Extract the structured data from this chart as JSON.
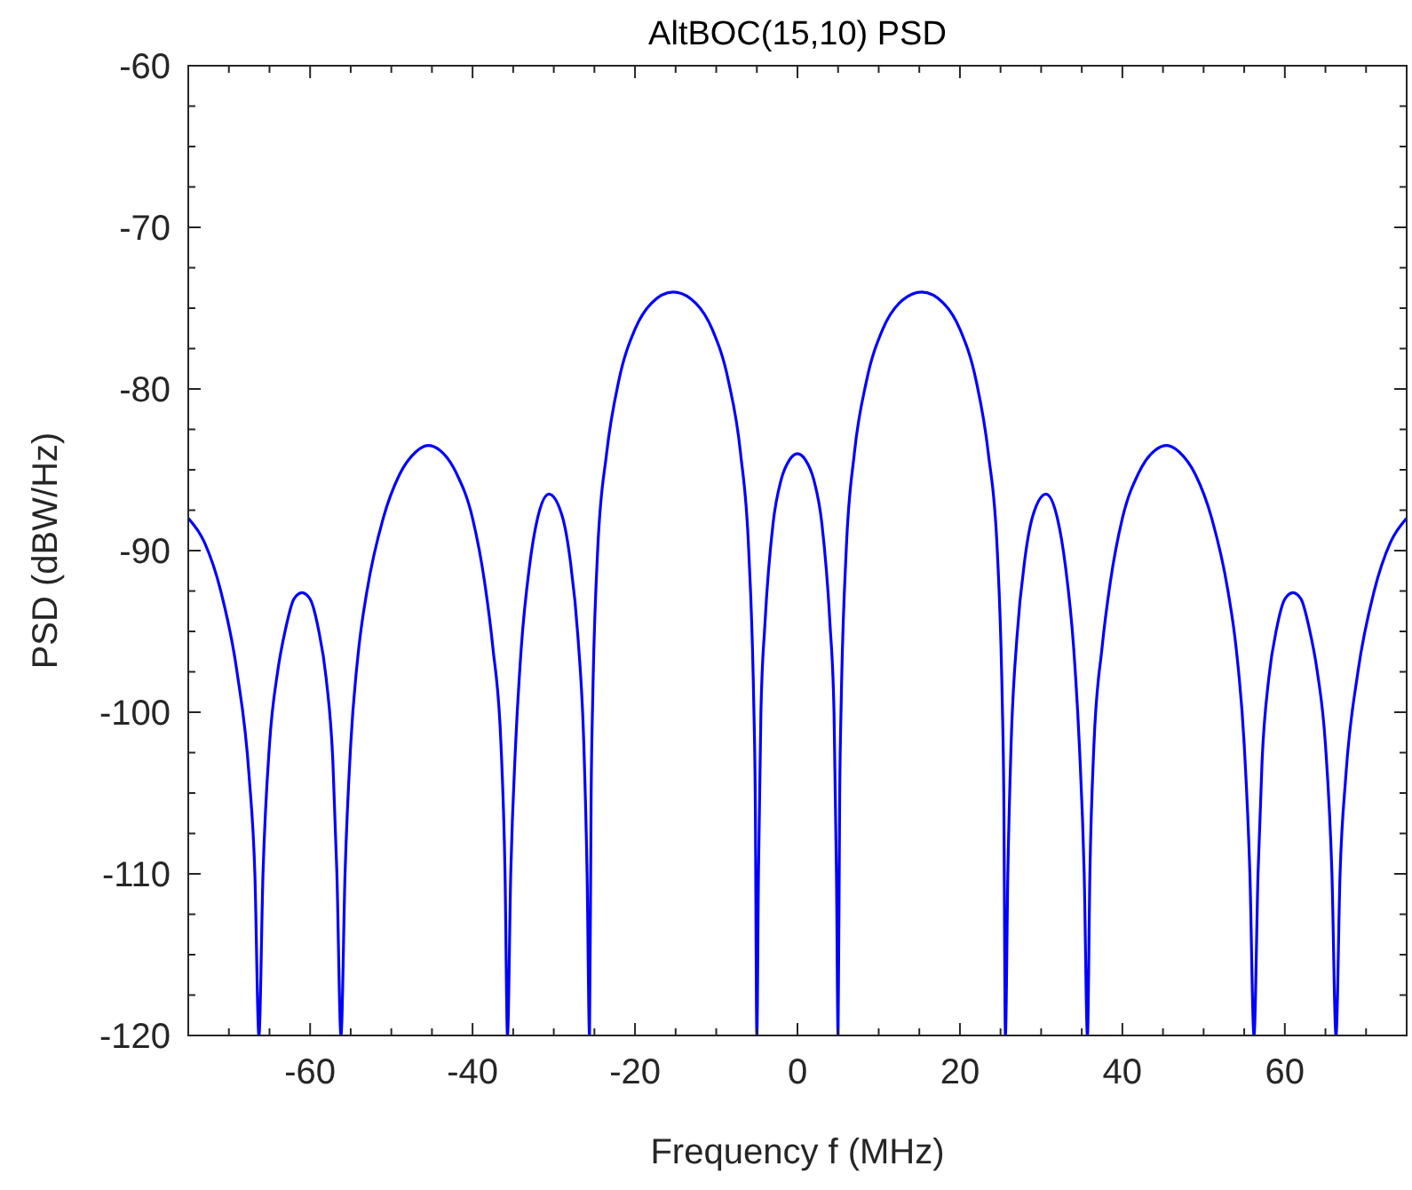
{
  "chart_data": {
    "type": "line",
    "title": "AltBOC(15,10) PSD",
    "xlabel": "Frequency f (MHz)",
    "ylabel": "PSD (dBW/Hz)",
    "x": [
      -75,
      -73,
      -71,
      -69,
      -67.5,
      -66.8,
      -66.3,
      -65.8,
      -65,
      -64,
      -63,
      -62,
      -61,
      -60,
      -59,
      -58,
      -57.2,
      -56.7,
      -56.2,
      -55.7,
      -55,
      -54,
      -53,
      -51,
      -49,
      -47,
      -45.5,
      -44,
      -42,
      -40,
      -38.5,
      -37.5,
      -36.5,
      -36,
      -35.7,
      -35.3,
      -34.7,
      -34,
      -33,
      -32,
      -30.6,
      -29,
      -28,
      -27,
      -26.3,
      -25.9,
      -25.6,
      -25.4,
      -25.2,
      -24.6,
      -23.5,
      -22,
      -20,
      -18,
      -15.3,
      -12.5,
      -10.5,
      -8.5,
      -7,
      -6,
      -5.4,
      -5.2,
      -5,
      -4.8,
      -4.5,
      -4,
      -3,
      -2,
      -1,
      0,
      1,
      2,
      3,
      4,
      4.5,
      4.8,
      5,
      5.2,
      5.4,
      6,
      7,
      8.5,
      10.5,
      12.5,
      15.3,
      18,
      20,
      22,
      23.5,
      24.6,
      25.2,
      25.4,
      25.6,
      25.9,
      26.3,
      27,
      28,
      29,
      30.6,
      32,
      33,
      34,
      34.7,
      35.3,
      35.7,
      36,
      36.5,
      37.5,
      38.5,
      40,
      42,
      44,
      45.5,
      47,
      49,
      51,
      53,
      54,
      55,
      55.7,
      56.2,
      56.7,
      57.2,
      58,
      59,
      60,
      61,
      62,
      63,
      64,
      65,
      65.8,
      66.3,
      66.8,
      67.5,
      69,
      71,
      73,
      75
    ],
    "series": [
      {
        "color": "#0000ff",
        "values": [
          -88,
          -89.5,
          -92.5,
          -97.5,
          -104,
          -110,
          -120,
          -110,
          -102,
          -97.5,
          -94.8,
          -93,
          -92.6,
          -93,
          -94.8,
          -98,
          -103,
          -110,
          -120,
          -110,
          -102,
          -96,
          -92.5,
          -88,
          -85.3,
          -83.9,
          -83.5,
          -83.8,
          -85.2,
          -88,
          -92,
          -96,
          -102,
          -110,
          -120,
          -110,
          -102,
          -96,
          -91,
          -88,
          -86.5,
          -87.8,
          -90.5,
          -95.5,
          -102,
          -110,
          -120,
          -105,
          -99,
          -90,
          -84,
          -79.5,
          -76.3,
          -74.7,
          -74,
          -74.7,
          -76.3,
          -79.5,
          -84,
          -90,
          -99,
          -105,
          -120,
          -110,
          -100,
          -94.5,
          -88.3,
          -85.6,
          -84.4,
          -84,
          -84.4,
          -85.6,
          -88.3,
          -94.5,
          -100,
          -110,
          -120,
          -105,
          -99,
          -90,
          -84,
          -79.5,
          -76.3,
          -74.7,
          -74,
          -74.7,
          -76.3,
          -79.5,
          -84,
          -90,
          -99,
          -105,
          -120,
          -110,
          -102,
          -95.5,
          -90.5,
          -87.8,
          -86.5,
          -88,
          -91,
          -96,
          -102,
          -110,
          -120,
          -110,
          -102,
          -96,
          -92,
          -88,
          -85.2,
          -83.8,
          -83.5,
          -83.9,
          -85.3,
          -88,
          -92.5,
          -96,
          -102,
          -110,
          -120,
          -110,
          -103,
          -98,
          -94.8,
          -93,
          -92.6,
          -93,
          -94.8,
          -97.5,
          -102,
          -110,
          -120,
          -110,
          -104,
          -97.5,
          -92.5,
          -89.5,
          -88
        ]
      }
    ],
    "xlim": [
      -75,
      75
    ],
    "xticks": [
      {
        "value": -70,
        "label": null
      },
      {
        "value": -65,
        "label": null
      },
      -60,
      {
        "value": -55,
        "label": null
      },
      {
        "value": -50,
        "label": null
      },
      {
        "value": -45,
        "label": null
      },
      -40,
      {
        "value": -35,
        "label": null
      },
      {
        "value": -30,
        "label": null
      },
      {
        "value": -25,
        "label": null
      },
      -20,
      {
        "value": -15,
        "label": null
      },
      {
        "value": -10,
        "label": null
      },
      {
        "value": -5,
        "label": null
      },
      0,
      {
        "value": 5,
        "label": null
      },
      {
        "value": 10,
        "label": null
      },
      {
        "value": 15,
        "label": null
      },
      20,
      {
        "value": 25,
        "label": null
      },
      {
        "value": 30,
        "label": null
      },
      {
        "value": 35,
        "label": null
      },
      40,
      {
        "value": 45,
        "label": null
      },
      {
        "value": 50,
        "label": null
      },
      {
        "value": 55,
        "label": null
      },
      60,
      {
        "value": 65,
        "label": null
      },
      {
        "value": 70,
        "label": null
      }
    ],
    "ylim": [
      -120,
      -60
    ],
    "yticks": [
      -120,
      {
        "value": -117.5,
        "label": null
      },
      {
        "value": -115,
        "label": null
      },
      {
        "value": -112.5,
        "label": null
      },
      -110,
      {
        "value": -107.5,
        "label": null
      },
      {
        "value": -105,
        "label": null
      },
      {
        "value": -102.5,
        "label": null
      },
      -100,
      {
        "value": -97.5,
        "label": null
      },
      {
        "value": -95,
        "label": null
      },
      {
        "value": -92.5,
        "label": null
      },
      -90,
      {
        "value": -87.5,
        "label": null
      },
      {
        "value": -85,
        "label": null
      },
      {
        "value": -82.5,
        "label": null
      },
      -80,
      {
        "value": -77.5,
        "label": null
      },
      {
        "value": -75,
        "label": null
      },
      {
        "value": -72.5,
        "label": null
      },
      -70,
      {
        "value": -67.5,
        "label": null
      },
      {
        "value": -65,
        "label": null
      },
      {
        "value": -62.5,
        "label": null
      },
      -60
    ],
    "grid": false,
    "marker": "none",
    "line_style": "solid"
  }
}
